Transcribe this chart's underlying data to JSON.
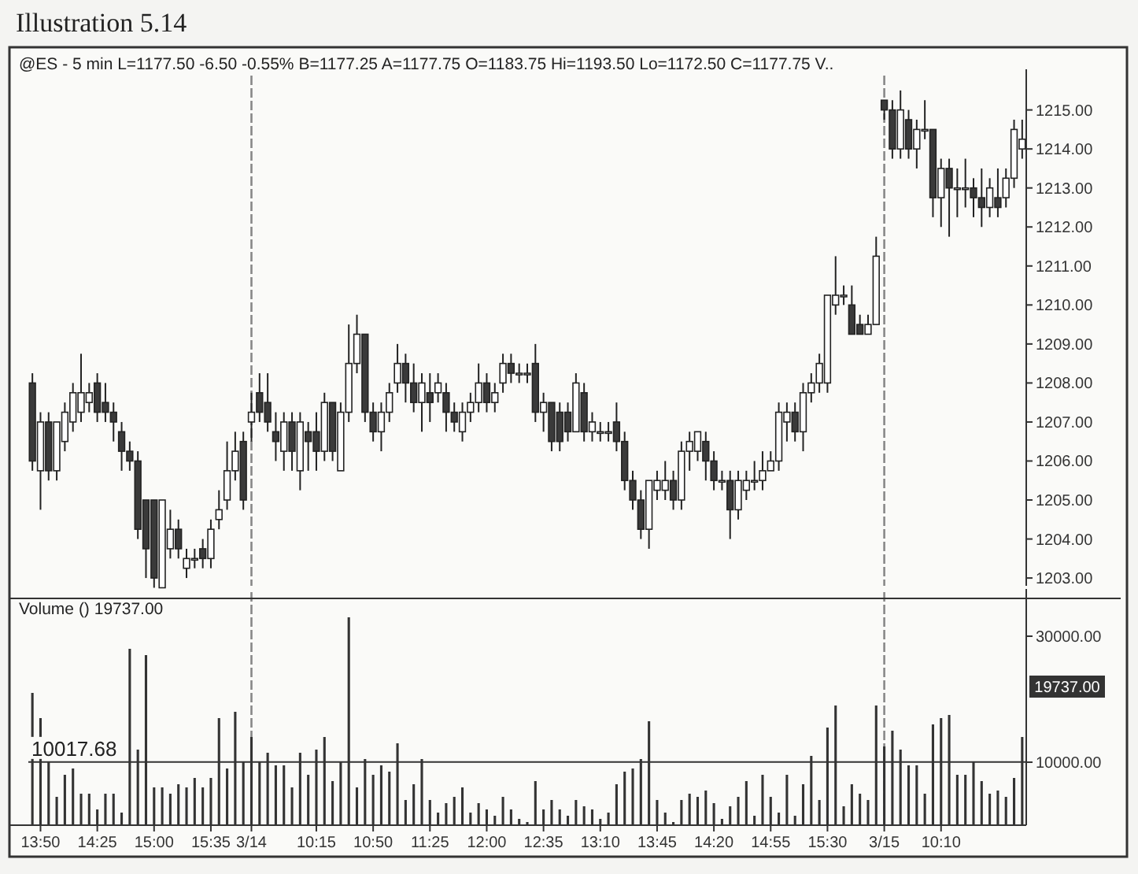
{
  "chart_data": [
    {
      "type": "candlestick",
      "title": "Illustration 5.14",
      "subtitle": "@ES - 5 min L=1177.50 -6.50 -0.55% B=1177.25 A=1177.75 O=1183.75 Hi=1193.50 Lo=1172.50 C=1177.75 V..",
      "categories": [
        null,
        "13:50",
        null,
        null,
        null,
        null,
        null,
        null,
        "14:25",
        null,
        null,
        null,
        null,
        null,
        null,
        "15:00",
        null,
        null,
        null,
        null,
        null,
        null,
        "15:35",
        null,
        null,
        null,
        null,
        "3/14",
        null,
        null,
        null,
        null,
        null,
        null,
        null,
        "10:15",
        null,
        null,
        null,
        null,
        null,
        null,
        "10:50",
        null,
        null,
        null,
        null,
        null,
        null,
        "11:25",
        null,
        null,
        null,
        null,
        null,
        null,
        "12:00",
        null,
        null,
        null,
        null,
        null,
        null,
        "12:35",
        null,
        null,
        null,
        null,
        null,
        null,
        "13:10",
        null,
        null,
        null,
        null,
        null,
        null,
        "13:45",
        null,
        null,
        null,
        null,
        null,
        null,
        "14:20",
        null,
        null,
        null,
        null,
        null,
        null,
        "14:55",
        null,
        null,
        null,
        null,
        null,
        null,
        "15:30",
        null,
        null,
        null,
        null,
        null,
        null,
        "3/15",
        null,
        null,
        null,
        null,
        null,
        null,
        "10:10",
        null,
        null,
        null,
        null,
        null,
        null,
        null,
        null,
        null,
        null
      ],
      "ohlc": [
        [
          1208.0,
          1208.25,
          1205.75,
          1206.0
        ],
        [
          1205.75,
          1207.25,
          1204.75,
          1207.0
        ],
        [
          1207.0,
          1207.25,
          1205.5,
          1205.75
        ],
        [
          1205.75,
          1207.0,
          1205.5,
          1207.0
        ],
        [
          1206.5,
          1207.5,
          1206.25,
          1207.25
        ],
        [
          1207.0,
          1208.0,
          1206.75,
          1207.75
        ],
        [
          1207.25,
          1208.75,
          1207.0,
          1207.75
        ],
        [
          1207.5,
          1208.0,
          1207.25,
          1207.75
        ],
        [
          1208.0,
          1208.25,
          1207.0,
          1207.25
        ],
        [
          1207.5,
          1208.0,
          1207.0,
          1207.25
        ],
        [
          1207.25,
          1207.5,
          1206.5,
          1207.0
        ],
        [
          1206.75,
          1207.0,
          1205.75,
          1206.25
        ],
        [
          1206.25,
          1206.5,
          1205.75,
          1206.0
        ],
        [
          1206.0,
          1206.25,
          1204.0,
          1204.25
        ],
        [
          1205.0,
          1205.0,
          1203.0,
          1203.75
        ],
        [
          1205.0,
          1205.0,
          1202.75,
          1203.0
        ],
        [
          1202.75,
          1205.0,
          1202.75,
          1205.0
        ],
        [
          1203.75,
          1204.75,
          1203.5,
          1204.25
        ],
        [
          1204.25,
          1204.5,
          1203.5,
          1203.75
        ],
        [
          1203.25,
          1203.75,
          1203.0,
          1203.5
        ],
        [
          1203.5,
          1203.75,
          1203.25,
          1203.5
        ],
        [
          1203.75,
          1204.0,
          1203.25,
          1203.5
        ],
        [
          1203.5,
          1204.5,
          1203.25,
          1204.25
        ],
        [
          1204.5,
          1205.25,
          1204.25,
          1204.75
        ],
        [
          1205.0,
          1206.5,
          1204.75,
          1205.75
        ],
        [
          1205.75,
          1206.75,
          1205.5,
          1206.25
        ],
        [
          1206.5,
          1206.75,
          1204.75,
          1205.0
        ],
        [
          1207.0,
          1207.75,
          1206.5,
          1207.25
        ],
        [
          1207.75,
          1208.25,
          1207.0,
          1207.25
        ],
        [
          1207.5,
          1208.25,
          1206.75,
          1207.0
        ],
        [
          1206.75,
          1207.25,
          1206.0,
          1206.5
        ],
        [
          1206.25,
          1207.25,
          1205.75,
          1207.0
        ],
        [
          1207.0,
          1207.25,
          1205.75,
          1206.25
        ],
        [
          1205.75,
          1207.25,
          1205.25,
          1207.0
        ],
        [
          1206.75,
          1207.0,
          1205.75,
          1206.5
        ],
        [
          1206.75,
          1207.25,
          1205.75,
          1206.25
        ],
        [
          1206.25,
          1207.75,
          1206.0,
          1207.5
        ],
        [
          1207.5,
          1207.5,
          1206.0,
          1206.25
        ],
        [
          1205.75,
          1207.5,
          1205.75,
          1207.25
        ],
        [
          1207.25,
          1209.5,
          1207.0,
          1208.5
        ],
        [
          1208.5,
          1209.75,
          1208.25,
          1209.25
        ],
        [
          1209.25,
          1209.25,
          1207.0,
          1207.25
        ],
        [
          1207.25,
          1207.5,
          1206.5,
          1206.75
        ],
        [
          1206.75,
          1207.5,
          1206.25,
          1207.25
        ],
        [
          1207.25,
          1208.0,
          1207.0,
          1207.75
        ],
        [
          1208.0,
          1209.0,
          1207.75,
          1208.5
        ],
        [
          1208.5,
          1208.75,
          1207.5,
          1208.0
        ],
        [
          1208.0,
          1208.5,
          1207.25,
          1207.5
        ],
        [
          1207.5,
          1208.25,
          1206.75,
          1208.0
        ],
        [
          1207.75,
          1208.25,
          1207.0,
          1207.5
        ],
        [
          1207.75,
          1208.25,
          1207.5,
          1208.0
        ],
        [
          1207.75,
          1208.0,
          1206.75,
          1207.25
        ],
        [
          1207.25,
          1207.5,
          1206.75,
          1207.0
        ],
        [
          1206.75,
          1207.5,
          1206.5,
          1207.25
        ],
        [
          1207.25,
          1207.75,
          1207.0,
          1207.5
        ],
        [
          1207.5,
          1208.5,
          1207.25,
          1208.0
        ],
        [
          1208.0,
          1208.25,
          1207.25,
          1207.5
        ],
        [
          1207.5,
          1208.0,
          1207.25,
          1207.75
        ],
        [
          1208.0,
          1208.75,
          1207.75,
          1208.5
        ],
        [
          1208.5,
          1208.75,
          1208.0,
          1208.25
        ],
        [
          1208.25,
          1208.5,
          1208.0,
          1208.25
        ],
        [
          1208.25,
          1208.5,
          1208.0,
          1208.25
        ],
        [
          1208.5,
          1209.0,
          1207.0,
          1207.25
        ],
        [
          1207.25,
          1207.75,
          1206.75,
          1207.5
        ],
        [
          1207.5,
          1207.5,
          1206.25,
          1206.5
        ],
        [
          1207.25,
          1207.5,
          1206.25,
          1206.5
        ],
        [
          1207.25,
          1207.5,
          1206.5,
          1206.75
        ],
        [
          1206.75,
          1208.25,
          1206.75,
          1208.0
        ],
        [
          1207.75,
          1208.0,
          1206.5,
          1206.75
        ],
        [
          1206.75,
          1207.25,
          1206.5,
          1207.0
        ],
        [
          1206.75,
          1207.0,
          1206.5,
          1206.75
        ],
        [
          1206.75,
          1207.0,
          1206.5,
          1206.75
        ],
        [
          1207.0,
          1207.5,
          1206.25,
          1206.5
        ],
        [
          1206.5,
          1206.75,
          1205.25,
          1205.5
        ],
        [
          1205.5,
          1205.75,
          1204.75,
          1205.0
        ],
        [
          1205.0,
          1205.25,
          1204.0,
          1204.25
        ],
        [
          1204.25,
          1205.5,
          1203.75,
          1205.5
        ],
        [
          1205.25,
          1205.75,
          1205.0,
          1205.5
        ],
        [
          1205.25,
          1206.0,
          1205.0,
          1205.5
        ],
        [
          1205.5,
          1205.75,
          1204.75,
          1205.0
        ],
        [
          1205.0,
          1206.5,
          1204.75,
          1206.25
        ],
        [
          1206.25,
          1206.75,
          1205.75,
          1206.5
        ],
        [
          1206.25,
          1206.75,
          1206.0,
          1206.75
        ],
        [
          1206.5,
          1206.75,
          1205.5,
          1206.0
        ],
        [
          1206.0,
          1206.25,
          1205.25,
          1205.5
        ],
        [
          1205.5,
          1205.75,
          1205.25,
          1205.5
        ],
        [
          1205.5,
          1205.75,
          1204.0,
          1204.75
        ],
        [
          1204.75,
          1205.75,
          1204.5,
          1205.5
        ],
        [
          1205.25,
          1205.75,
          1205.0,
          1205.5
        ],
        [
          1205.5,
          1206.0,
          1205.25,
          1205.5
        ],
        [
          1205.5,
          1206.25,
          1205.25,
          1205.75
        ],
        [
          1205.75,
          1206.25,
          1205.75,
          1206.0
        ],
        [
          1206.0,
          1207.5,
          1205.75,
          1207.25
        ],
        [
          1207.0,
          1207.5,
          1206.5,
          1207.25
        ],
        [
          1207.25,
          1207.5,
          1206.5,
          1206.75
        ],
        [
          1206.75,
          1208.0,
          1206.25,
          1207.75
        ],
        [
          1207.75,
          1208.25,
          1207.5,
          1208.0
        ],
        [
          1208.0,
          1208.75,
          1207.75,
          1208.5
        ],
        [
          1208.0,
          1210.25,
          1207.75,
          1210.25
        ],
        [
          1210.0,
          1211.25,
          1209.75,
          1210.25
        ],
        [
          1210.25,
          1210.5,
          1210.0,
          1210.25
        ],
        [
          1210.0,
          1210.5,
          1209.25,
          1209.25
        ],
        [
          1209.5,
          1209.75,
          1209.25,
          1209.25
        ],
        [
          1209.25,
          1209.75,
          1209.25,
          1209.5
        ],
        [
          1209.5,
          1211.75,
          1209.5,
          1211.25
        ],
        [
          1215.25,
          1215.25,
          1214.75,
          1215.0
        ],
        [
          1215.0,
          1215.25,
          1213.75,
          1214.0
        ],
        [
          1214.0,
          1215.5,
          1213.75,
          1215.0
        ],
        [
          1214.75,
          1215.0,
          1213.75,
          1214.0
        ],
        [
          1214.0,
          1214.75,
          1213.5,
          1214.5
        ],
        [
          1214.5,
          1215.25,
          1214.25,
          1214.5
        ],
        [
          1214.5,
          1214.5,
          1212.25,
          1212.75
        ],
        [
          1212.75,
          1213.75,
          1212.0,
          1213.5
        ],
        [
          1213.5,
          1213.75,
          1211.75,
          1213.0
        ],
        [
          1213.0,
          1213.5,
          1212.25,
          1213.0
        ],
        [
          1213.0,
          1213.75,
          1212.5,
          1213.0
        ],
        [
          1213.0,
          1213.25,
          1212.25,
          1212.75
        ],
        [
          1212.75,
          1213.5,
          1212.0,
          1212.5
        ],
        [
          1212.5,
          1213.25,
          1212.25,
          1213.0
        ],
        [
          1212.75,
          1213.5,
          1212.25,
          1212.5
        ],
        [
          1212.75,
          1213.5,
          1212.5,
          1213.25
        ],
        [
          1213.25,
          1214.75,
          1213.0,
          1214.5
        ],
        [
          1214.0,
          1214.75,
          1213.75,
          1214.25
        ]
      ],
      "ylim": [
        1202.8,
        1215.8
      ],
      "yticks": [
        {
          "value": 1203,
          "label": "1203.00"
        },
        {
          "value": 1204,
          "label": "1204.00"
        },
        {
          "value": 1205,
          "label": "1205.00"
        },
        {
          "value": 1206,
          "label": "1206.00"
        },
        {
          "value": 1207,
          "label": "1207.00"
        },
        {
          "value": 1208,
          "label": "1208.00"
        },
        {
          "value": 1209,
          "label": "1209.00"
        },
        {
          "value": 1210,
          "label": "1210.00"
        },
        {
          "value": 1211,
          "label": "1211.00"
        },
        {
          "value": 1212,
          "label": "1212.00"
        },
        {
          "value": 1213,
          "label": "1213.00"
        },
        {
          "value": 1214,
          "label": "1214.00"
        },
        {
          "value": 1215,
          "label": "1215.00"
        }
      ],
      "tick_labels": "y",
      "ref_lines": [
        {
          "axis": "x",
          "value": "3/14",
          "color": "#888888",
          "line_style": "dashed"
        },
        {
          "axis": "x",
          "value": "3/15",
          "color": "#888888",
          "line_style": "dashed"
        }
      ]
    },
    {
      "type": "bar",
      "title": "Volume () 19737.00",
      "color": "#333333",
      "categories": [
        null,
        "13:50",
        null,
        null,
        null,
        null,
        null,
        null,
        "14:25",
        null,
        null,
        null,
        null,
        null,
        null,
        "15:00",
        null,
        null,
        null,
        null,
        null,
        null,
        "15:35",
        null,
        null,
        null,
        null,
        "3/14",
        null,
        null,
        null,
        null,
        null,
        null,
        null,
        "10:15",
        null,
        null,
        null,
        null,
        null,
        null,
        "10:50",
        null,
        null,
        null,
        null,
        null,
        null,
        "11:25",
        null,
        null,
        null,
        null,
        null,
        null,
        "12:00",
        null,
        null,
        null,
        null,
        null,
        null,
        "12:35",
        null,
        null,
        null,
        null,
        null,
        null,
        "13:10",
        null,
        null,
        null,
        null,
        null,
        null,
        "13:45",
        null,
        null,
        null,
        null,
        null,
        null,
        "14:20",
        null,
        null,
        null,
        null,
        null,
        null,
        "14:55",
        null,
        null,
        null,
        null,
        null,
        null,
        "15:30",
        null,
        null,
        null,
        null,
        null,
        null,
        "3/15",
        null,
        null,
        null,
        null,
        null,
        null,
        "10:10",
        null,
        null,
        null,
        null,
        null,
        null,
        null,
        null,
        null,
        null
      ],
      "values": [
        21000,
        17000,
        10000,
        4500,
        8000,
        9000,
        5000,
        5000,
        2500,
        5000,
        5000,
        2000,
        28000,
        12000,
        27000,
        6000,
        6000,
        5000,
        6500,
        6000,
        7500,
        6000,
        7500,
        17000,
        9000,
        18000,
        10000,
        14000,
        10000,
        11500,
        9500,
        9500,
        6000,
        11500,
        8000,
        12000,
        14000,
        7000,
        10000,
        33000,
        6000,
        10500,
        8000,
        9500,
        8500,
        13000,
        4000,
        6500,
        10500,
        4000,
        2000,
        3500,
        4500,
        6000,
        2000,
        3500,
        2500,
        1500,
        4500,
        2500,
        1000,
        500,
        7000,
        2500,
        4000,
        2500,
        1500,
        4000,
        3000,
        2500,
        1000,
        2000,
        6500,
        8500,
        9000,
        10500,
        16500,
        4000,
        2000,
        500,
        4000,
        5000,
        4500,
        5500,
        3500,
        1000,
        3000,
        4500,
        7000,
        1500,
        8000,
        4500,
        2000,
        8000,
        1500,
        6500,
        11000,
        4000,
        15500,
        19000,
        3000,
        6500,
        5000,
        4000,
        19000,
        12500,
        15000,
        12000,
        9500,
        9500,
        5000,
        16000,
        17000,
        17500,
        8000,
        8000,
        10000,
        7000,
        5000,
        5500,
        4500,
        7500,
        14000
      ],
      "ylim": [
        0,
        36000
      ],
      "yticks": [
        {
          "value": 10000,
          "label": "10000.00"
        },
        {
          "value": 30000,
          "label": "30000.00"
        }
      ],
      "ref_lines": [
        {
          "axis": "y",
          "value": 10017.68,
          "label": "10017.68",
          "color": "#333333",
          "line_style": "solid"
        },
        {
          "axis": "x",
          "value": "3/14",
          "color": "#888888",
          "line_style": "dashed"
        },
        {
          "axis": "x",
          "value": "3/15",
          "color": "#888888",
          "line_style": "dashed"
        }
      ],
      "annotations": [
        "19737.00"
      ]
    }
  ]
}
